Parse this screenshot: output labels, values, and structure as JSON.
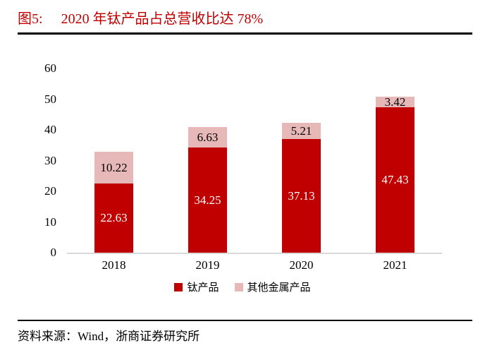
{
  "title": {
    "prefix": "图5:",
    "text": "2020 年钛产品占总营收比达 78%"
  },
  "chart_data": {
    "type": "bar",
    "subtype": "stacked",
    "categories": [
      "2018",
      "2019",
      "2020",
      "2021"
    ],
    "series": [
      {
        "name": "钛产品",
        "color": "#c00000",
        "label_color": "#ffffff",
        "values": [
          22.63,
          34.25,
          37.13,
          47.43
        ]
      },
      {
        "name": "其他金属产品",
        "color": "#e6b8b7",
        "label_color": "#000000",
        "values": [
          10.22,
          6.63,
          5.21,
          3.42
        ]
      }
    ],
    "ylim": [
      0,
      60
    ],
    "yticks": [
      0,
      10,
      20,
      30,
      40,
      50,
      60
    ],
    "xlabel": "",
    "ylabel": "",
    "grid": false,
    "legend_position": "bottom",
    "axis_line_color": "#d9d9d9"
  },
  "source": {
    "text": "资料来源：Wind，浙商证券研究所"
  },
  "colors": {
    "title_red": "#c00000",
    "bar_red": "#c00000",
    "bar_pink": "#e6b8b7",
    "axis_gray": "#d9d9d9",
    "rule_black": "#000000"
  }
}
